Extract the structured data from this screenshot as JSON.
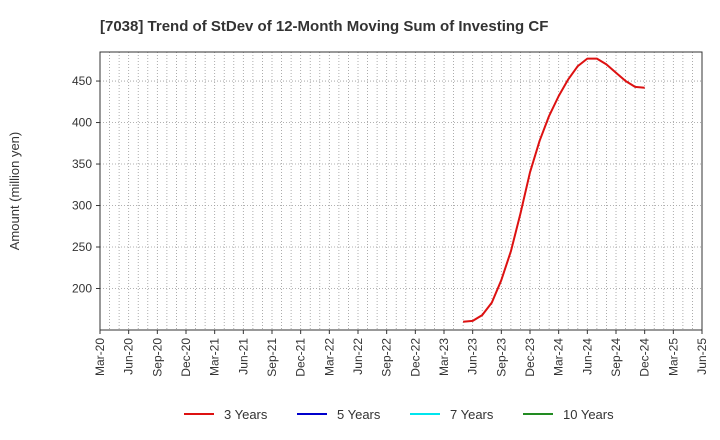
{
  "chart_data": {
    "type": "line",
    "title": "[7038]  Trend of StDev of 12-Month Moving Sum of Investing CF",
    "xlabel": "",
    "ylabel": "Amount (million yen)",
    "ylim": [
      150,
      485
    ],
    "yticks": [
      200,
      250,
      300,
      350,
      400,
      450
    ],
    "x_tick_labels": [
      "Mar-20",
      "Jun-20",
      "Sep-20",
      "Dec-20",
      "Mar-21",
      "Jun-21",
      "Sep-21",
      "Dec-21",
      "Mar-22",
      "Jun-22",
      "Sep-22",
      "Dec-22",
      "Mar-23",
      "Jun-23",
      "Sep-23",
      "Dec-23",
      "Mar-24",
      "Jun-24",
      "Sep-24",
      "Dec-24",
      "Mar-25",
      "Jun-25"
    ],
    "grid": true,
    "legend_position": "bottom",
    "series": [
      {
        "name": "3 Years",
        "color": "#dd1111",
        "x": [
          "May-23",
          "Jun-23",
          "Jul-23",
          "Aug-23",
          "Sep-23",
          "Oct-23",
          "Nov-23",
          "Dec-23",
          "Jan-24",
          "Feb-24",
          "Mar-24",
          "Apr-24",
          "May-24",
          "Jun-24",
          "Jul-24",
          "Aug-24",
          "Sep-24",
          "Oct-24",
          "Nov-24",
          "Dec-24"
        ],
        "values": [
          160,
          161,
          168,
          183,
          210,
          245,
          290,
          340,
          378,
          408,
          432,
          452,
          468,
          477,
          477,
          470,
          460,
          450,
          443,
          442
        ]
      },
      {
        "name": "5 Years",
        "color": "#0000cc",
        "x": [],
        "values": []
      },
      {
        "name": "7 Years",
        "color": "#00e5ee",
        "x": [],
        "values": []
      },
      {
        "name": "10 Years",
        "color": "#228b22",
        "x": [],
        "values": []
      }
    ]
  }
}
